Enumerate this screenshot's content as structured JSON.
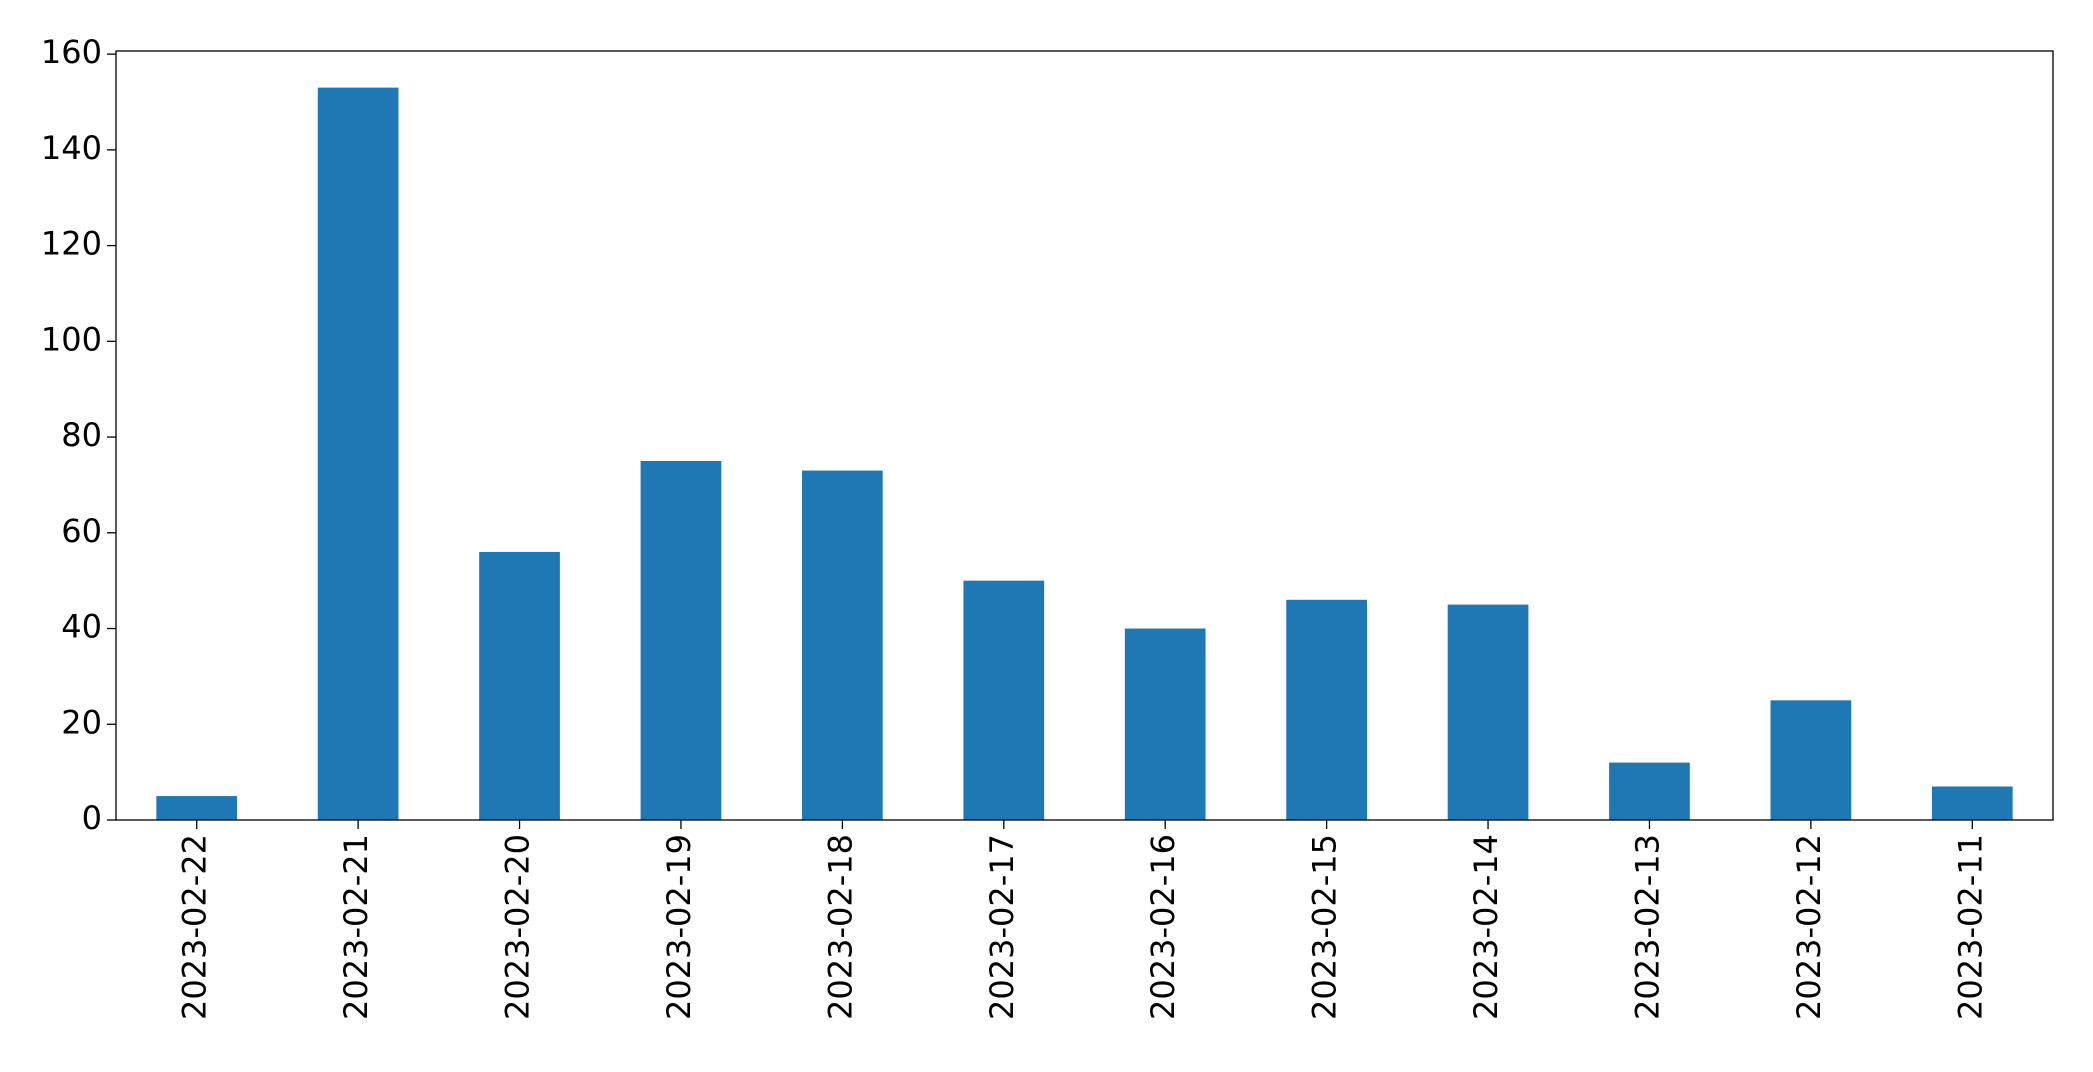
{
  "chart_data": {
    "type": "bar",
    "categories": [
      "2023-02-22",
      "2023-02-21",
      "2023-02-20",
      "2023-02-19",
      "2023-02-18",
      "2023-02-17",
      "2023-02-16",
      "2023-02-15",
      "2023-02-14",
      "2023-02-13",
      "2023-02-12",
      "2023-02-11"
    ],
    "values": [
      5,
      153,
      56,
      75,
      73,
      50,
      40,
      46,
      45,
      12,
      25,
      7
    ],
    "color": "#1f77b4",
    "ylim": [
      0,
      160.65
    ],
    "yticks": [
      0,
      20,
      40,
      60,
      80,
      100,
      120,
      140,
      160
    ],
    "grid": false
  }
}
